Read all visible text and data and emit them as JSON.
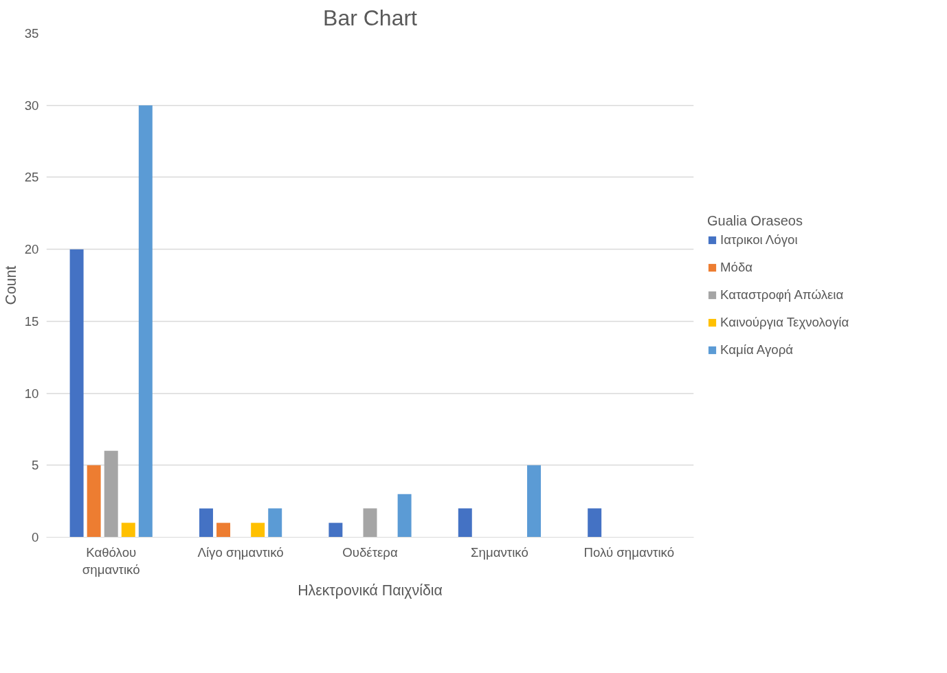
{
  "chart_data": {
    "type": "bar",
    "title": "Bar Chart",
    "xlabel": "Ηλεκτρονικά Παιχνίδια",
    "ylabel": "Count",
    "legend_title": "Gualia Oraseos",
    "categories": [
      "Καθόλου σημαντικό",
      "Λίγο σημαντικό",
      "Ουδέτερα",
      "Σημαντικό",
      "Πολύ σημαντικό"
    ],
    "series": [
      {
        "name": "Ιατρικοι Λόγοι",
        "color": "#4472c4",
        "values": [
          20,
          2,
          1,
          2,
          2
        ]
      },
      {
        "name": "Μόδα",
        "color": "#ed7d31",
        "values": [
          5,
          1,
          0,
          0,
          0
        ]
      },
      {
        "name": "Καταστροφή Απώλεια",
        "color": "#a5a5a5",
        "values": [
          6,
          0,
          2,
          0,
          0
        ]
      },
      {
        "name": "Καινούργια Τεχνολογία",
        "color": "#ffc000",
        "values": [
          1,
          1,
          0,
          0,
          0
        ]
      },
      {
        "name": "Καμία Αγορά",
        "color": "#5b9bd5",
        "values": [
          30,
          2,
          3,
          5,
          0
        ]
      }
    ],
    "ylim": [
      0,
      35
    ],
    "yticks": [
      0,
      5,
      10,
      15,
      20,
      25,
      30,
      35
    ],
    "grid": "y",
    "legend": "right"
  }
}
